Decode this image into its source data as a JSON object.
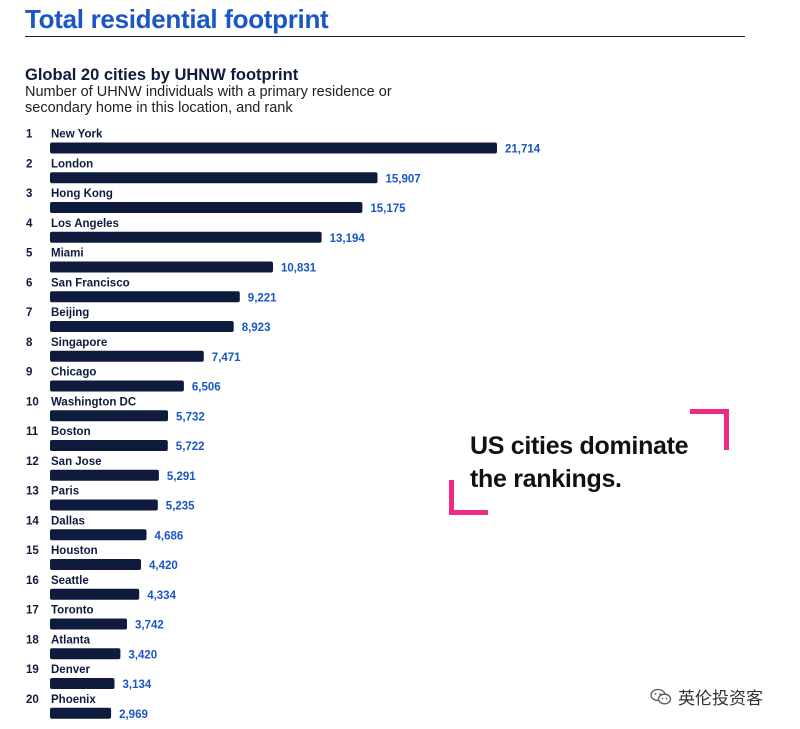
{
  "header": {
    "title": "Total residential footprint"
  },
  "callout": {
    "line1": "US cities dominate",
    "line2": "the rankings."
  },
  "watermark": {
    "text": "英伦投资客"
  },
  "colors": {
    "bar": "#0f1b3d",
    "value_label": "#1a56c4",
    "title": "#1a56c4",
    "accent": "#ee2a85"
  },
  "chart_data": {
    "type": "bar",
    "orientation": "horizontal",
    "title": "Global 20 cities by UHNW footprint",
    "subtitle": "Number of UHNW individuals with a primary residence or secondary home in this location, and rank",
    "ranks": [
      "1",
      "2",
      "3",
      "4",
      "5",
      "6",
      "7",
      "8",
      "9",
      "10",
      "11",
      "12",
      "13",
      "14",
      "15",
      "16",
      "17",
      "18",
      "19",
      "20"
    ],
    "categories": [
      "New York",
      "London",
      "Hong Kong",
      "Los Angeles",
      "Miami",
      "San Francisco",
      "Beijing",
      "Singapore",
      "Chicago",
      "Washington DC",
      "Boston",
      "San Jose",
      "Paris",
      "Dallas",
      "Houston",
      "Seattle",
      "Toronto",
      "Atlanta",
      "Denver",
      "Phoenix"
    ],
    "values": [
      21714,
      15907,
      15175,
      13194,
      10831,
      9221,
      8923,
      7471,
      6506,
      5732,
      5722,
      5291,
      5235,
      4686,
      4420,
      4334,
      3742,
      3420,
      3134,
      2969
    ],
    "value_labels": [
      "21,714",
      "15,907",
      "15,175",
      "13,194",
      "10,831",
      "9,221",
      "8,923",
      "7,471",
      "6,506",
      "5,732",
      "5,722",
      "5,291",
      "5,235",
      "4,686",
      "4,420",
      "4,334",
      "3,742",
      "3,420",
      "3,134",
      "2,969"
    ],
    "xlim": [
      0,
      21714
    ],
    "grid": false,
    "legend": "none"
  }
}
